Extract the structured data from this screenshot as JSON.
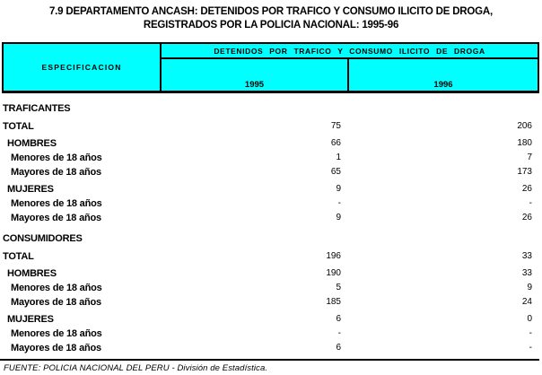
{
  "title": {
    "line1": "7.9   DEPARTAMENTO ANCASH: DETENIDOS POR TRAFICO Y CONSUMO ILICITO DE DROGA,",
    "line2": "REGISTRADOS POR LA POLICIA NACIONAL: 1995-96"
  },
  "table": {
    "spec_header": "ESPECIFICACION",
    "group_header": "DETENIDOS  POR  TRAFICO  Y  CONSUMO  ILICITO  DE  DROGA",
    "col_years": [
      "1995",
      "1996"
    ],
    "rows": [
      {
        "type": "section",
        "label": "TRAFICANTES",
        "v1995": "",
        "v1996": ""
      },
      {
        "type": "total",
        "label": "TOTAL",
        "v1995": "75",
        "v1996": "206"
      },
      {
        "type": "group",
        "label": "HOMBRES",
        "v1995": "66",
        "v1996": "180"
      },
      {
        "type": "item",
        "label": "Menores de 18 años",
        "v1995": "1",
        "v1996": "7"
      },
      {
        "type": "item",
        "label": "Mayores de 18 años",
        "v1995": "65",
        "v1996": "173"
      },
      {
        "type": "group",
        "label": "MUJERES",
        "v1995": "9",
        "v1996": "26"
      },
      {
        "type": "item",
        "label": "Menores de 18 años",
        "v1995": "-",
        "v1996": "-"
      },
      {
        "type": "item",
        "label": "Mayores de 18 años",
        "v1995": "9",
        "v1996": "26"
      },
      {
        "type": "section",
        "label": "CONSUMIDORES",
        "v1995": "",
        "v1996": ""
      },
      {
        "type": "total",
        "label": "TOTAL",
        "v1995": "196",
        "v1996": "33"
      },
      {
        "type": "group",
        "label": "HOMBRES",
        "v1995": "190",
        "v1996": "33"
      },
      {
        "type": "item",
        "label": "Menores de 18 años",
        "v1995": "5",
        "v1996": "9"
      },
      {
        "type": "item",
        "label": "Mayores de 18 años",
        "v1995": "185",
        "v1996": "24"
      },
      {
        "type": "group",
        "label": "MUJERES",
        "v1995": "6",
        "v1996": "0"
      },
      {
        "type": "item",
        "label": "Menores de 18 años",
        "v1995": "-",
        "v1996": "-"
      },
      {
        "type": "item",
        "label": "Mayores de 18 años",
        "v1995": "6",
        "v1996": "-"
      }
    ]
  },
  "footer": {
    "source": "FUENTE: POLICIA NACIONAL DEL PERU - División de Estadística."
  },
  "colors": {
    "header_bg": "#00FFFF",
    "border": "#000000",
    "text": "#000000",
    "page_bg": "#FFFFFF"
  }
}
